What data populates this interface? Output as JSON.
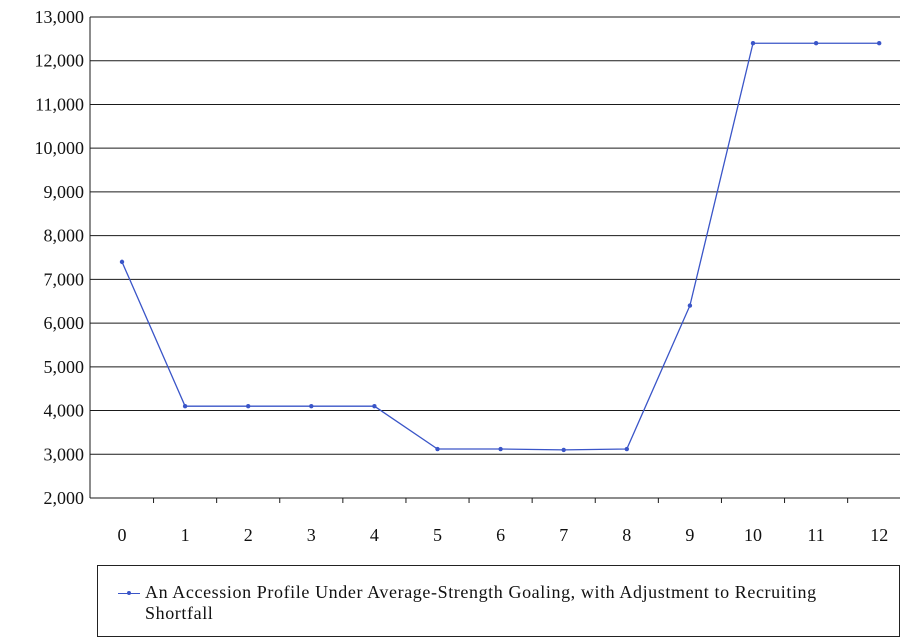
{
  "chart_data": {
    "type": "line",
    "title": "",
    "xlabel": "",
    "ylabel": "",
    "x": [
      0,
      1,
      2,
      3,
      4,
      5,
      6,
      7,
      8,
      9,
      10,
      11,
      12
    ],
    "x_tick_labels": [
      "0",
      "1",
      "2",
      "3",
      "4",
      "5",
      "6",
      "7",
      "8",
      "9",
      "10",
      "11",
      "12"
    ],
    "y_tick_labels": [
      "2,000",
      "3,000",
      "4,000",
      "5,000",
      "6,000",
      "7,000",
      "8,000",
      "9,000",
      "10,000",
      "11,000",
      "12,000",
      "13,000"
    ],
    "ylim": [
      2000,
      13000
    ],
    "y_ticks": [
      2000,
      3000,
      4000,
      5000,
      6000,
      7000,
      8000,
      9000,
      10000,
      11000,
      12000,
      13000
    ],
    "grid": "horizontal",
    "legend_position": "bottom",
    "series": [
      {
        "name": "An Accession Profile Under Average-Strength Goaling, with Adjustment to Recruiting Shortfall",
        "color": "#3a55c8",
        "values": [
          7400,
          4100,
          4100,
          4100,
          4100,
          3120,
          3120,
          3100,
          3120,
          6400,
          12400,
          12400,
          12400
        ]
      }
    ]
  }
}
